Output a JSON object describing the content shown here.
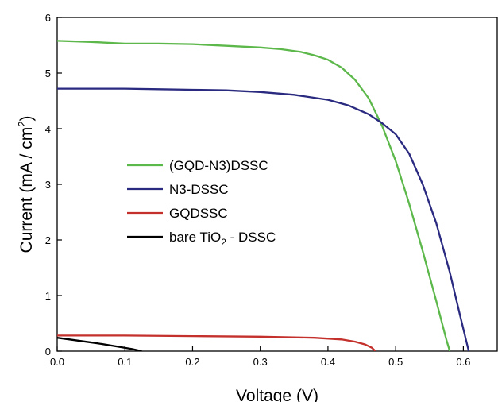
{
  "chart_data": {
    "type": "line",
    "xlabel": "Voltage (V)",
    "ylabel_main": "Current (mA / cm",
    "ylabel_sup": "2",
    "ylabel_close": ")",
    "xlim": [
      0.0,
      0.65
    ],
    "ylim": [
      0,
      6
    ],
    "x_ticks": [
      "0.0",
      "0.1",
      "0.2",
      "0.3",
      "0.4",
      "0.5",
      "0.6"
    ],
    "y_ticks": [
      "0",
      "1",
      "2",
      "3",
      "4",
      "5",
      "6"
    ],
    "legend_position": "center-left",
    "series": [
      {
        "name": "(GQD-N3)DSSC",
        "color": "#5cb84a",
        "points": [
          [
            0.0,
            5.58
          ],
          [
            0.05,
            5.56
          ],
          [
            0.1,
            5.53
          ],
          [
            0.15,
            5.53
          ],
          [
            0.2,
            5.52
          ],
          [
            0.25,
            5.49
          ],
          [
            0.3,
            5.46
          ],
          [
            0.33,
            5.43
          ],
          [
            0.36,
            5.38
          ],
          [
            0.38,
            5.32
          ],
          [
            0.4,
            5.24
          ],
          [
            0.42,
            5.1
          ],
          [
            0.44,
            4.88
          ],
          [
            0.46,
            4.55
          ],
          [
            0.48,
            4.05
          ],
          [
            0.5,
            3.42
          ],
          [
            0.52,
            2.65
          ],
          [
            0.54,
            1.8
          ],
          [
            0.56,
            0.9
          ],
          [
            0.575,
            0.2
          ],
          [
            0.58,
            0.0
          ]
        ]
      },
      {
        "name": "N3-DSSC",
        "color": "#2a2a80",
        "points": [
          [
            0.0,
            4.72
          ],
          [
            0.05,
            4.72
          ],
          [
            0.1,
            4.72
          ],
          [
            0.15,
            4.71
          ],
          [
            0.2,
            4.7
          ],
          [
            0.25,
            4.69
          ],
          [
            0.3,
            4.66
          ],
          [
            0.35,
            4.61
          ],
          [
            0.4,
            4.52
          ],
          [
            0.43,
            4.42
          ],
          [
            0.46,
            4.26
          ],
          [
            0.48,
            4.1
          ],
          [
            0.5,
            3.9
          ],
          [
            0.52,
            3.55
          ],
          [
            0.54,
            3.0
          ],
          [
            0.56,
            2.3
          ],
          [
            0.58,
            1.42
          ],
          [
            0.595,
            0.65
          ],
          [
            0.605,
            0.15
          ],
          [
            0.608,
            0.0
          ]
        ]
      },
      {
        "name": "GQDSSC",
        "color": "#c4302b",
        "points": [
          [
            0.0,
            0.28
          ],
          [
            0.1,
            0.28
          ],
          [
            0.2,
            0.27
          ],
          [
            0.3,
            0.26
          ],
          [
            0.38,
            0.24
          ],
          [
            0.42,
            0.21
          ],
          [
            0.44,
            0.17
          ],
          [
            0.455,
            0.12
          ],
          [
            0.465,
            0.06
          ],
          [
            0.47,
            0.0
          ]
        ]
      },
      {
        "name_main": "bare TiO",
        "name_sub": "2",
        "name_rest": " - DSSC",
        "color": "#000000",
        "points": [
          [
            0.0,
            0.24
          ],
          [
            0.03,
            0.19
          ],
          [
            0.06,
            0.14
          ],
          [
            0.09,
            0.08
          ],
          [
            0.11,
            0.04
          ],
          [
            0.125,
            0.0
          ]
        ]
      }
    ]
  }
}
